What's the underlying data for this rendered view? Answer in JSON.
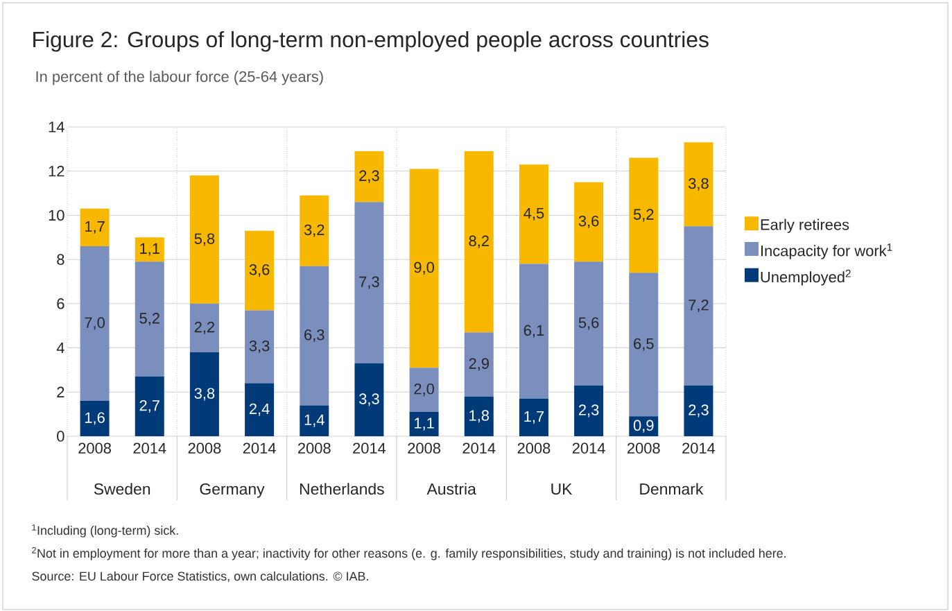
{
  "chart_data": {
    "type": "bar",
    "stacked": true,
    "title": "Figure 2: Groups of long-term non-employed people across countries",
    "subtitle": "In percent of the labour force (25-64 years)",
    "categories": [
      "2008",
      "2014",
      "2008",
      "2014",
      "2008",
      "2014",
      "2008",
      "2014",
      "2008",
      "2014",
      "2008",
      "2014"
    ],
    "series": [
      {
        "name": "Unemployed$^{2}$",
        "color": "#003a78",
        "values": [
          1.6,
          2.7,
          3.8,
          2.4,
          1.4,
          3.3,
          1.1,
          1.8,
          1.7,
          2.3,
          0.9,
          2.3
        ],
        "value_labels": [
          "1,6",
          "2,7",
          "3,8",
          "2,4",
          "1,4",
          "3,3",
          "1,1",
          "1,8",
          "1,7",
          "2,3",
          "0,9",
          "2,3"
        ]
      },
      {
        "name": "Incapacity for work$^{1}$",
        "color": "#7b8fbf",
        "values": [
          7.0,
          5.2,
          2.2,
          3.3,
          6.3,
          7.3,
          2.0,
          2.9,
          6.1,
          5.6,
          6.5,
          7.2
        ],
        "value_labels": [
          "7,0",
          "5,2",
          "2,2",
          "3,3",
          "6,3",
          "7,3",
          "2,0",
          "2,9",
          "6,1",
          "5,6",
          "6,5",
          "7,2"
        ]
      },
      {
        "name": "Early retirees",
        "color": "#f9b800",
        "values": [
          1.7,
          1.1,
          5.8,
          3.6,
          3.2,
          2.3,
          9.0,
          8.2,
          4.5,
          3.6,
          5.2,
          3.8
        ],
        "value_labels": [
          "1,7",
          "1,1",
          "5,8",
          "3,6",
          "3,2",
          "2,3",
          "9,0",
          "8,2",
          "4,5",
          "3,6",
          "5,2",
          "3,8"
        ]
      }
    ],
    "ylim": [
      0,
      14
    ],
    "yticks": [
      0,
      2,
      4,
      6,
      8,
      10,
      12,
      14
    ],
    "grid": "y",
    "legend": "right",
    "annotations": [
      "Sweden",
      "Germany",
      "Netherlands",
      "Austria",
      "UK",
      "Denmark",
      "$^{1}$Including (long-term) sick.",
      "$^{2}$Not in employment for more than a year; inactivity for other reasons (e. g. family responsibilities, study and training) is not included here.",
      "Source: EU Labour Force Statistics, own calculations. © IAB."
    ]
  }
}
